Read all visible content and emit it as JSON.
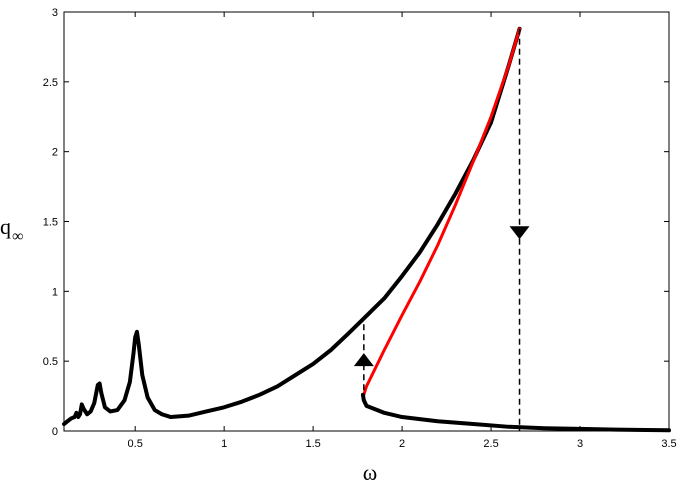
{
  "chart_data": {
    "type": "line",
    "xlabel": "ω",
    "ylabel": "q",
    "ylabel_subscript": "∞",
    "xlim": [
      0.1,
      3.5
    ],
    "ylim": [
      0,
      3
    ],
    "x_ticks": [
      0.5,
      1,
      1.5,
      2,
      2.5,
      3,
      3.5
    ],
    "x_tick_labels": [
      "0.5",
      "1",
      "1.5",
      "2",
      "2.5",
      "3",
      "3.5"
    ],
    "y_ticks": [
      0,
      0.5,
      1,
      1.5,
      2,
      2.5,
      3
    ],
    "y_tick_labels": [
      "0",
      "0.5",
      "1",
      "1.5",
      "2",
      "2.5",
      "3"
    ],
    "grid": false,
    "series": [
      {
        "color": "#000000",
        "style": "solid",
        "points": [
          [
            0.1,
            0.05
          ],
          [
            0.12,
            0.07
          ],
          [
            0.14,
            0.09
          ],
          [
            0.16,
            0.1
          ],
          [
            0.17,
            0.13
          ],
          [
            0.18,
            0.1
          ],
          [
            0.19,
            0.12
          ],
          [
            0.2,
            0.19
          ],
          [
            0.21,
            0.16
          ],
          [
            0.23,
            0.12
          ],
          [
            0.25,
            0.14
          ],
          [
            0.27,
            0.2
          ],
          [
            0.29,
            0.33
          ],
          [
            0.3,
            0.34
          ],
          [
            0.31,
            0.27
          ],
          [
            0.33,
            0.17
          ],
          [
            0.36,
            0.14
          ],
          [
            0.4,
            0.15
          ],
          [
            0.44,
            0.22
          ],
          [
            0.47,
            0.35
          ],
          [
            0.49,
            0.55
          ],
          [
            0.5,
            0.67
          ],
          [
            0.51,
            0.71
          ],
          [
            0.52,
            0.62
          ],
          [
            0.54,
            0.4
          ],
          [
            0.57,
            0.24
          ],
          [
            0.61,
            0.15
          ],
          [
            0.65,
            0.12
          ],
          [
            0.7,
            0.1
          ],
          [
            0.8,
            0.11
          ],
          [
            0.9,
            0.14
          ],
          [
            1.0,
            0.17
          ],
          [
            1.1,
            0.21
          ],
          [
            1.2,
            0.26
          ],
          [
            1.3,
            0.32
          ],
          [
            1.4,
            0.4
          ],
          [
            1.5,
            0.48
          ],
          [
            1.6,
            0.58
          ],
          [
            1.7,
            0.7
          ],
          [
            1.78,
            0.8
          ],
          [
            1.9,
            0.95
          ],
          [
            2.0,
            1.11
          ],
          [
            2.1,
            1.28
          ],
          [
            2.2,
            1.48
          ],
          [
            2.3,
            1.7
          ],
          [
            2.4,
            1.94
          ],
          [
            2.5,
            2.21
          ],
          [
            2.6,
            2.62
          ],
          [
            2.66,
            2.88
          ]
        ]
      },
      {
        "color": "#ff0000",
        "style": "solid",
        "points": [
          [
            1.785,
            0.26
          ],
          [
            1.8,
            0.32
          ],
          [
            1.85,
            0.45
          ],
          [
            1.9,
            0.58
          ],
          [
            2.0,
            0.83
          ],
          [
            2.1,
            1.07
          ],
          [
            2.2,
            1.33
          ],
          [
            2.3,
            1.62
          ],
          [
            2.4,
            1.93
          ],
          [
            2.5,
            2.25
          ],
          [
            2.6,
            2.62
          ],
          [
            2.66,
            2.88
          ]
        ]
      },
      {
        "color": "#000000",
        "style": "solid",
        "points": [
          [
            1.78,
            0.26
          ],
          [
            1.785,
            0.22
          ],
          [
            1.8,
            0.18
          ],
          [
            1.9,
            0.13
          ],
          [
            2.0,
            0.1
          ],
          [
            2.2,
            0.07
          ],
          [
            2.4,
            0.05
          ],
          [
            2.6,
            0.03
          ],
          [
            2.8,
            0.02
          ],
          [
            3.0,
            0.015
          ],
          [
            3.2,
            0.01
          ],
          [
            3.5,
            0.005
          ]
        ]
      }
    ],
    "jumps": [
      {
        "x": 1.785,
        "y_from": 0.22,
        "y_to": 0.8,
        "arrow_y": 0.5,
        "direction": "up"
      },
      {
        "x": 2.66,
        "y_from": 2.88,
        "y_to": 0.0,
        "arrow_y": 1.43,
        "direction": "down"
      }
    ]
  }
}
